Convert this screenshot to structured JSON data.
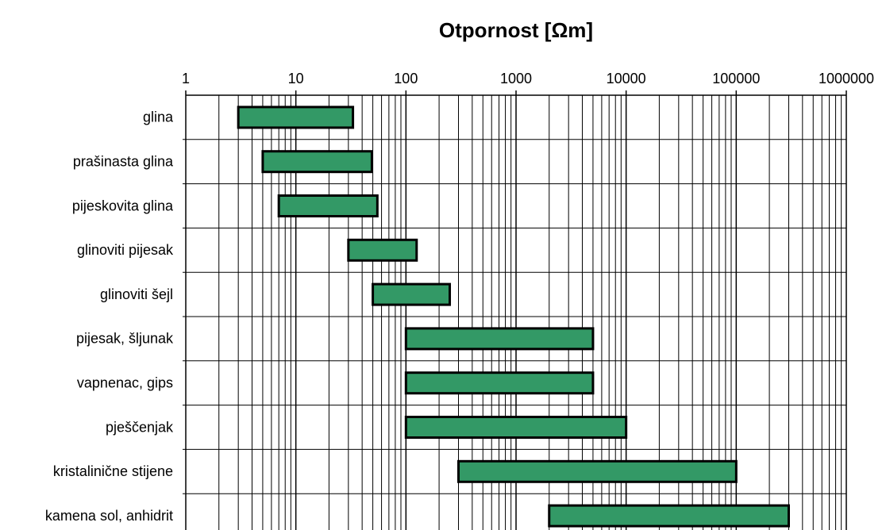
{
  "chart_data": {
    "type": "range-bar",
    "title": "Otpornost  [Ωm]",
    "categories": [
      "glina",
      "prašinasta glina",
      "pijeskovita glina",
      "glinoviti pijesak",
      "glinoviti šejl",
      "pijesak, šljunak",
      "vapnenac, gips",
      "pješčenjak",
      "kristalinične stijene",
      "kamena sol, anhidrit"
    ],
    "low": [
      3,
      5,
      7,
      30,
      50,
      100,
      100,
      100,
      300,
      2000
    ],
    "high": [
      33,
      49,
      55,
      125,
      250,
      5000,
      5000,
      10000,
      100000,
      300000
    ],
    "color": "#339966",
    "xscale": "log",
    "xlim": [
      1,
      1000000
    ],
    "xticks": [
      1,
      10,
      100,
      1000,
      10000,
      100000,
      1000000
    ],
    "grid": true,
    "minor_grid": true
  }
}
